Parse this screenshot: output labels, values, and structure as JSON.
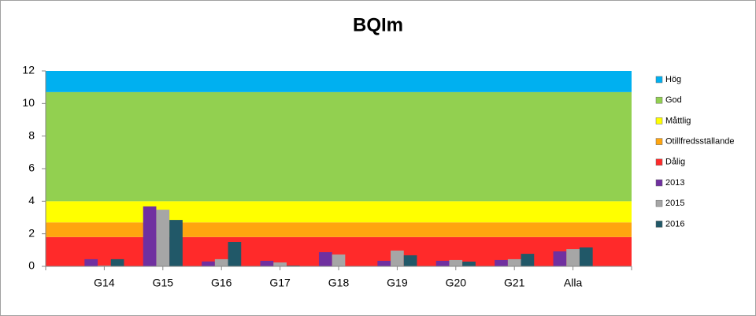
{
  "chart_data": {
    "type": "bar",
    "title": "BQIm",
    "categories": [
      "G14",
      "G15",
      "G16",
      "G17",
      "G18",
      "G19",
      "G20",
      "G21",
      "Alla"
    ],
    "bands": [
      {
        "name": "Hög",
        "color": "#00b0f0",
        "value": 1.3
      },
      {
        "name": "God",
        "color": "#92d050",
        "value": 6.7
      },
      {
        "name": "Måttlig",
        "color": "#ffff00",
        "value": 1.3
      },
      {
        "name": "Otillfredsställande",
        "color": "#ffa50f",
        "value": 0.9
      },
      {
        "name": "Dålig",
        "color": "#ff2a2a",
        "value": 1.8
      }
    ],
    "series": [
      {
        "name": "2013",
        "color": "#7030a0",
        "values": [
          0.44,
          3.68,
          0.3,
          0.34,
          0.87,
          0.34,
          0.34,
          0.39,
          0.92
        ]
      },
      {
        "name": "2015",
        "color": "#a6a6a6",
        "values": [
          0.05,
          3.48,
          0.44,
          0.24,
          0.73,
          0.97,
          0.39,
          0.44,
          1.06
        ]
      },
      {
        "name": "2016",
        "color": "#215868",
        "values": [
          0.44,
          2.85,
          1.5,
          0.05,
          null,
          0.68,
          0.29,
          0.77,
          1.16
        ]
      }
    ],
    "ylim": [
      0,
      12
    ],
    "yticks": [
      0,
      2,
      4,
      6,
      8,
      10,
      12
    ]
  }
}
